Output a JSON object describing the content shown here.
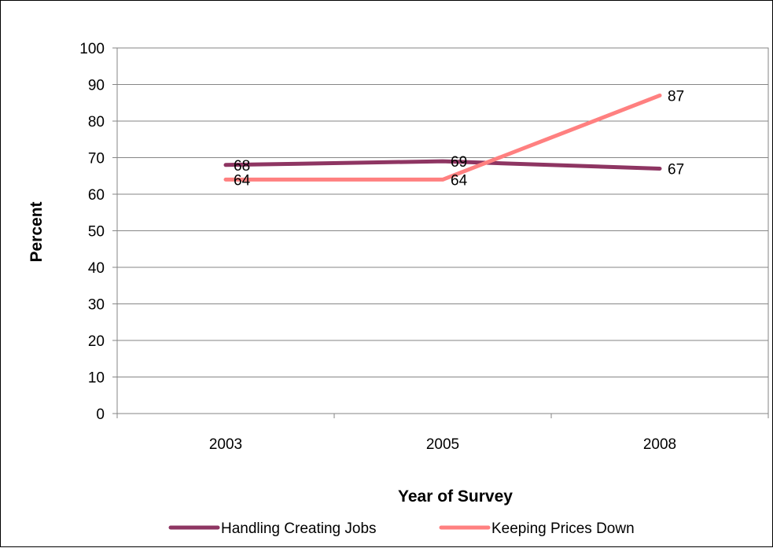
{
  "chart_data": {
    "type": "line",
    "title": "",
    "xlabel": "Year of Survey",
    "ylabel": "Percent",
    "categories": [
      "2003",
      "2005",
      "2008"
    ],
    "ylim": [
      0,
      100
    ],
    "ytick_step": 10,
    "yticks": [
      "0",
      "10",
      "20",
      "30",
      "40",
      "50",
      "60",
      "70",
      "80",
      "90",
      "100"
    ],
    "grid": true,
    "legend_position": "bottom",
    "series": [
      {
        "name": "Handling Creating Jobs",
        "values": [
          68,
          69,
          67
        ],
        "labels": [
          "68",
          "69",
          "67"
        ],
        "color": "#8E3562"
      },
      {
        "name": "Keeping Prices Down",
        "values": [
          64,
          64,
          87
        ],
        "labels": [
          "64",
          "64",
          "87"
        ],
        "color": "#FF8080"
      }
    ]
  }
}
